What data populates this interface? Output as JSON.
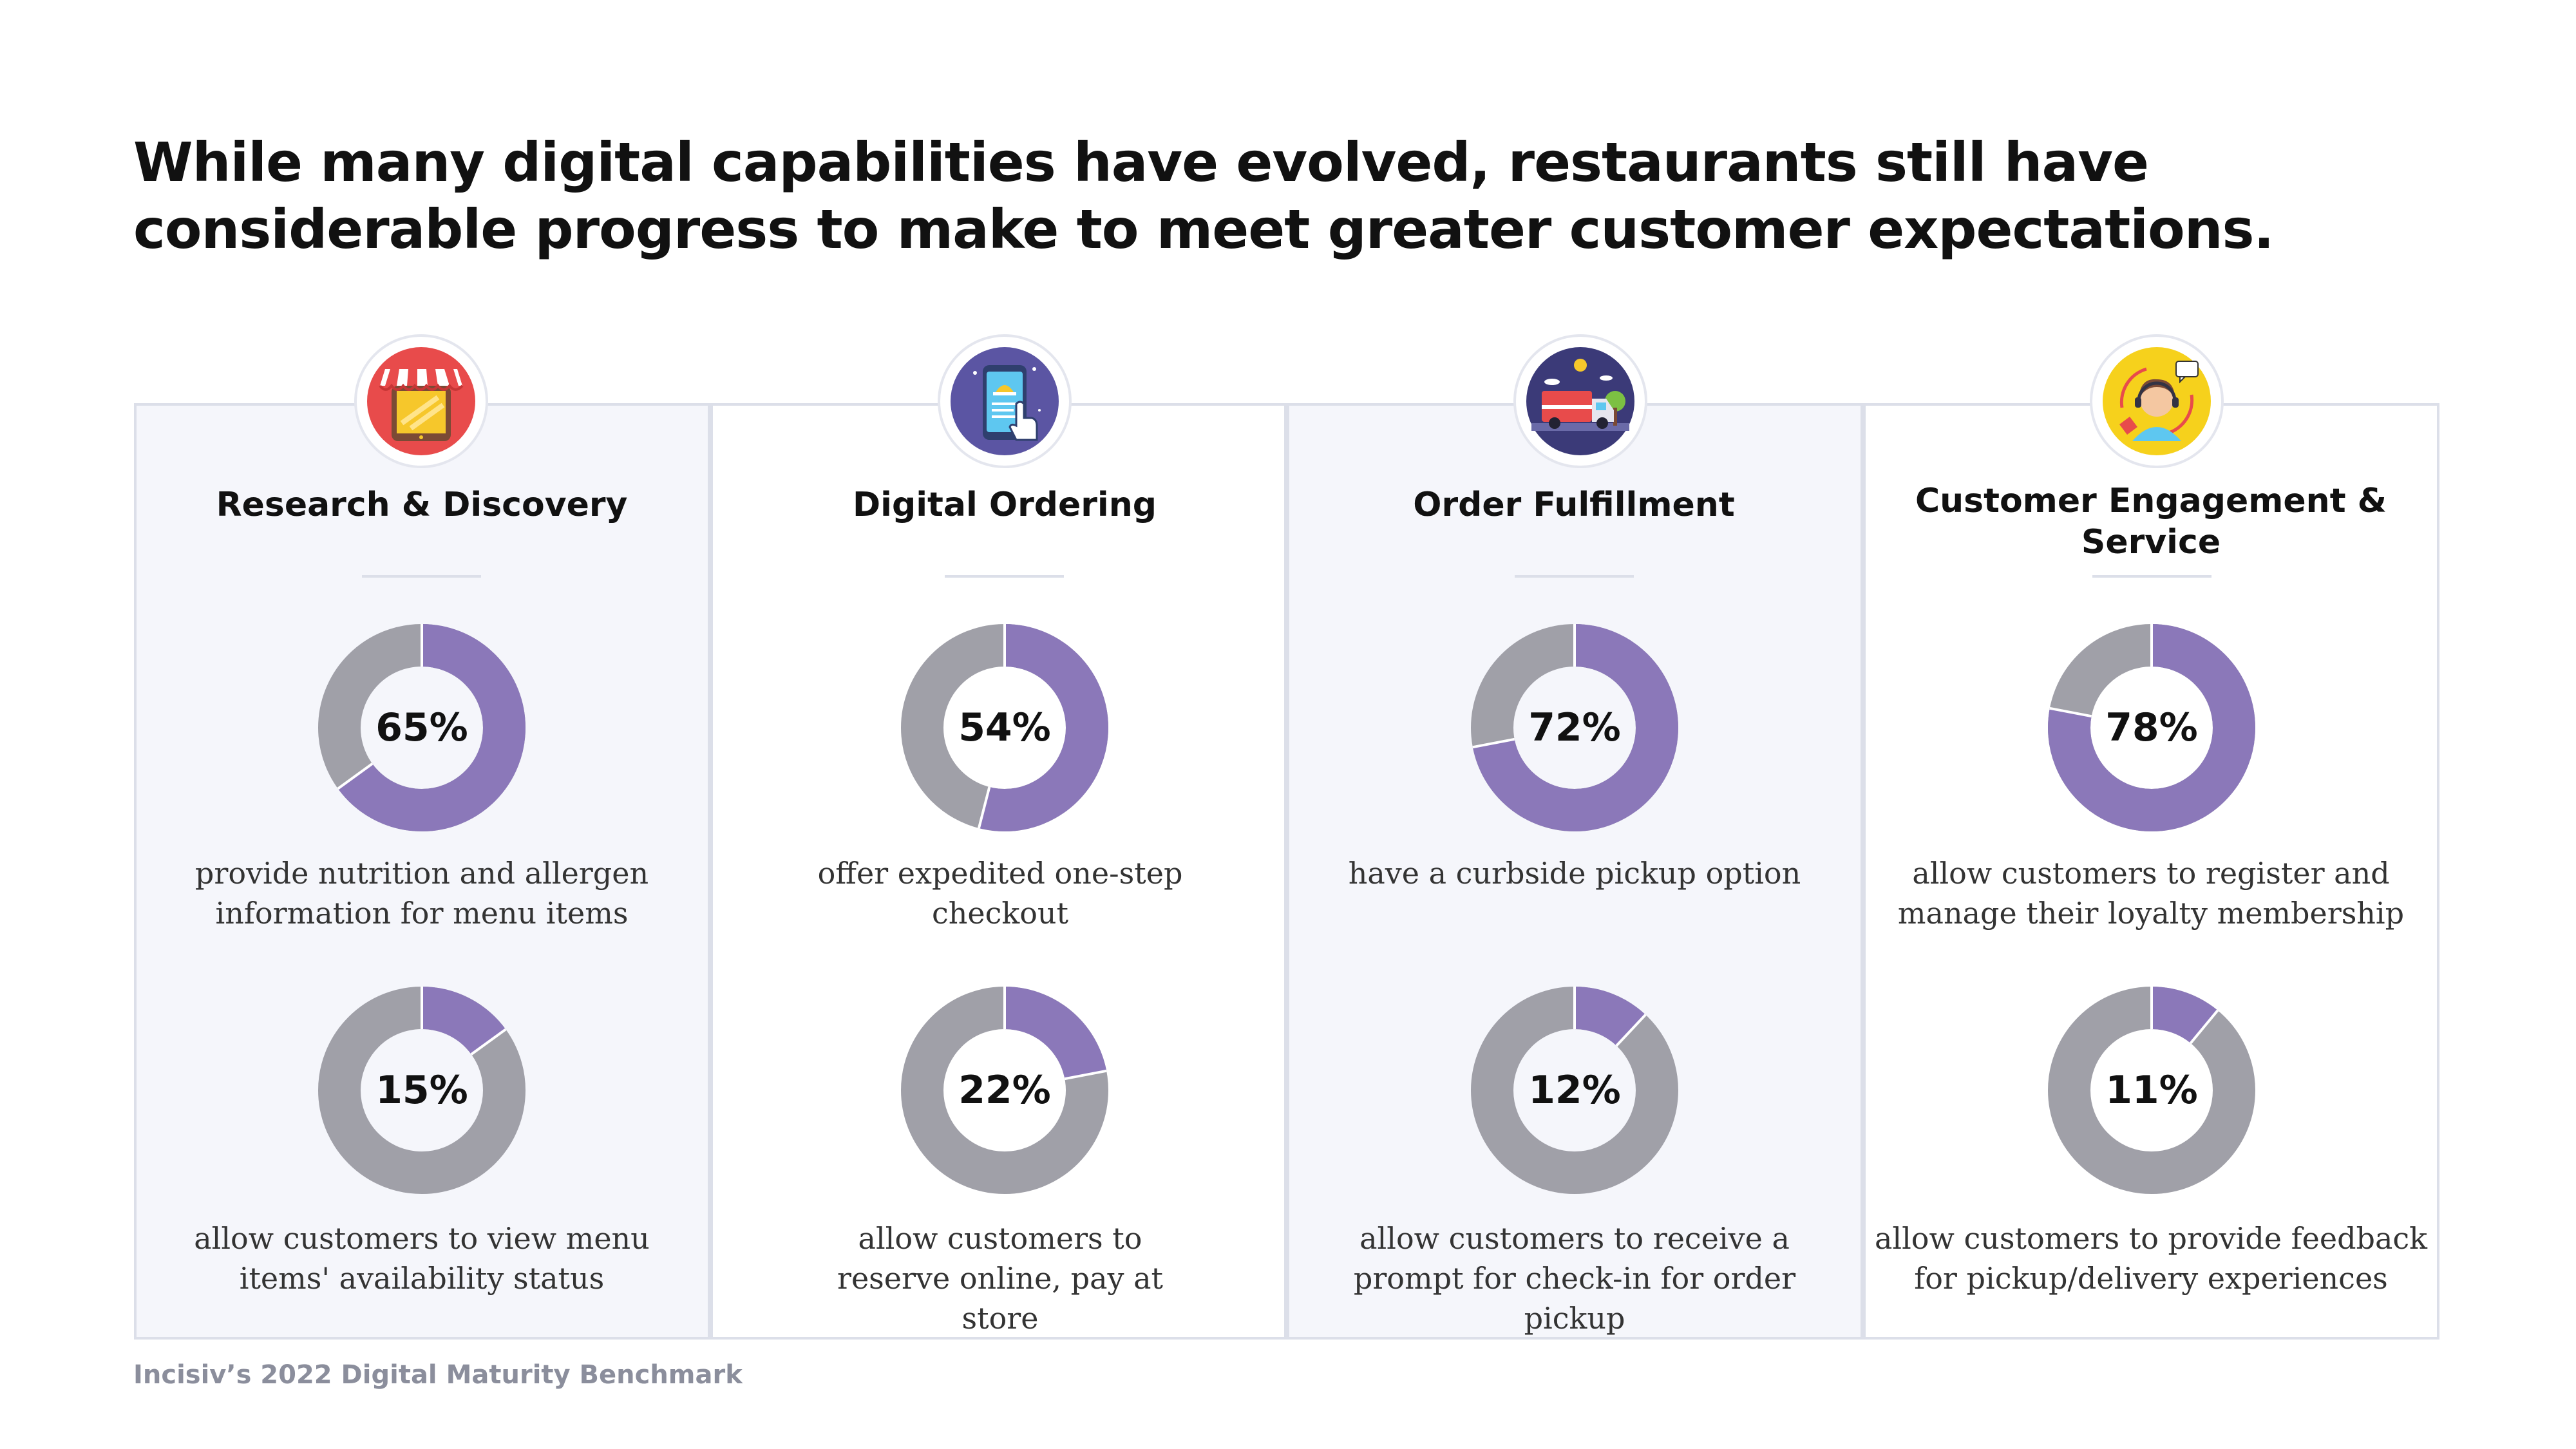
{
  "title": "While many digital capabilities have evolved, restaurants still have considerable progress to make to meet greater customer expectations.",
  "source": "Incisiv’s 2022 Digital Maturity Benchmark",
  "colors": {
    "filled": "#8b78b9",
    "remainder": "#a0a0a8",
    "panel_border": "#dcdfe9",
    "panel_tint": "#f5f6fb"
  },
  "columns": [
    {
      "icon": "storefront-tablet-icon",
      "title": "Research & Discovery",
      "stats": [
        {
          "value": "65%",
          "percent": 65,
          "desc": "provide nutrition and allergen information for menu items"
        },
        {
          "value": "15%",
          "percent": 15,
          "desc": "allow customers to view menu items' availability status"
        }
      ]
    },
    {
      "icon": "mobile-ordering-icon",
      "title": "Digital Ordering",
      "stats": [
        {
          "value": "54%",
          "percent": 54,
          "desc": "offer expedited one-step checkout"
        },
        {
          "value": "22%",
          "percent": 22,
          "desc": "allow customers to reserve online, pay at store"
        }
      ]
    },
    {
      "icon": "delivery-truck-icon",
      "title": "Order Fulfillment",
      "stats": [
        {
          "value": "72%",
          "percent": 72,
          "desc": "have a curbside pickup option"
        },
        {
          "value": "12%",
          "percent": 12,
          "desc": "allow customers to receive a prompt for check-in for order pickup"
        }
      ]
    },
    {
      "icon": "customer-support-headset-icon",
      "title": "Customer Engagement & Service",
      "stats": [
        {
          "value": "78%",
          "percent": 78,
          "desc": "allow customers to register and manage their loyalty membership"
        },
        {
          "value": "11%",
          "percent": 11,
          "desc": "allow customers to provide feedback for pickup/delivery experiences"
        }
      ]
    }
  ],
  "chart_data": [
    {
      "type": "pie",
      "title": "Research & Discovery",
      "slices": [
        {
          "label": "provide nutrition and allergen information for menu items",
          "value": 65
        },
        {
          "label": "",
          "value": 35
        }
      ]
    },
    {
      "type": "pie",
      "title": "Research & Discovery",
      "slices": [
        {
          "label": "allow customers to view menu items' availability status",
          "value": 15
        },
        {
          "label": "",
          "value": 85
        }
      ]
    },
    {
      "type": "pie",
      "title": "Digital Ordering",
      "slices": [
        {
          "label": "offer expedited one-step checkout",
          "value": 54
        },
        {
          "label": "",
          "value": 46
        }
      ]
    },
    {
      "type": "pie",
      "title": "Digital Ordering",
      "slices": [
        {
          "label": "allow customers to reserve online, pay at store",
          "value": 22
        },
        {
          "label": "",
          "value": 78
        }
      ]
    },
    {
      "type": "pie",
      "title": "Order Fulfillment",
      "slices": [
        {
          "label": "have a curbside pickup option",
          "value": 72
        },
        {
          "label": "",
          "value": 28
        }
      ]
    },
    {
      "type": "pie",
      "title": "Order Fulfillment",
      "slices": [
        {
          "label": "allow customers to receive a prompt for check-in for order pickup",
          "value": 12
        },
        {
          "label": "",
          "value": 88
        }
      ]
    },
    {
      "type": "pie",
      "title": "Customer Engagement & Service",
      "slices": [
        {
          "label": "allow customers to register and manage their loyalty membership",
          "value": 78
        },
        {
          "label": "",
          "value": 22
        }
      ]
    },
    {
      "type": "pie",
      "title": "Customer Engagement & Service",
      "slices": [
        {
          "label": "allow customers to provide feedback for pickup/delivery experiences",
          "value": 11
        },
        {
          "label": "",
          "value": 89
        }
      ]
    }
  ]
}
